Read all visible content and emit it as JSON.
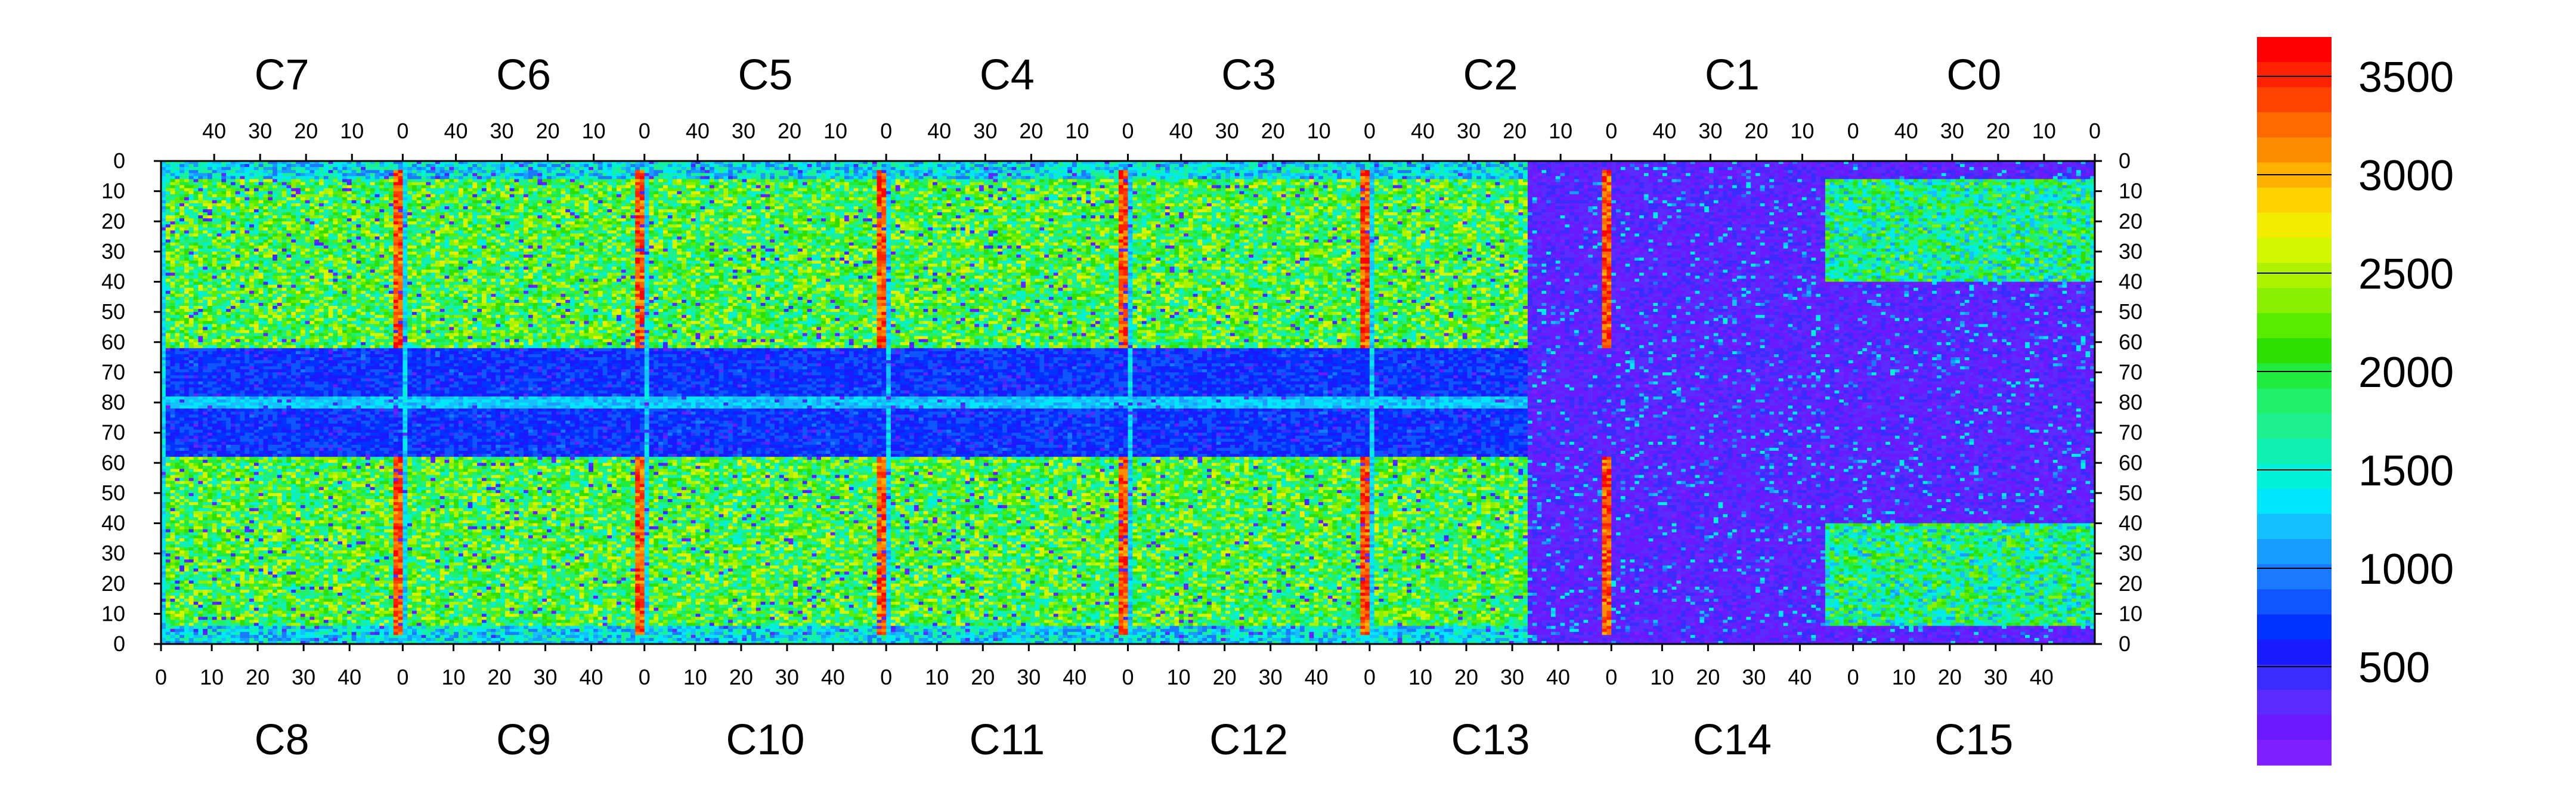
{
  "chart_data": {
    "type": "heatmap",
    "title": "",
    "xlabel": "",
    "ylabel": "",
    "z_range": [
      0,
      3700
    ],
    "top_chips": [
      "C7",
      "C6",
      "C5",
      "C4",
      "C3",
      "C2",
      "C1",
      "C0"
    ],
    "bottom_chips": [
      "C8",
      "C9",
      "C10",
      "C11",
      "C12",
      "C13",
      "C14",
      "C15"
    ],
    "top_axis_ticks": [
      "40",
      "30",
      "20",
      "10",
      "0"
    ],
    "bottom_axis_ticks": [
      "0",
      "10",
      "20",
      "30",
      "40"
    ],
    "y_ticks_top_half": [
      "0",
      "10",
      "20",
      "30",
      "40",
      "50",
      "60",
      "70",
      "80"
    ],
    "y_ticks_bottom_half": [
      "70",
      "60",
      "50",
      "40",
      "30",
      "20",
      "10",
      "0"
    ],
    "colorbar": {
      "ticks": [
        "500",
        "1000",
        "1500",
        "2000",
        "2500",
        "3000",
        "3500"
      ],
      "tick_values": [
        500,
        1000,
        1500,
        2000,
        2500,
        3000,
        3500
      ],
      "min": 0,
      "max": 3700,
      "colors": [
        "#7f1fff",
        "#6b1aff",
        "#5a2aff",
        "#3a2bff",
        "#1a1aff",
        "#0033ff",
        "#0f56ff",
        "#1a7aff",
        "#189cff",
        "#14c0ff",
        "#00e6ff",
        "#00f0d8",
        "#10f0b0",
        "#1ef090",
        "#20f06a",
        "#20ec40",
        "#2ee000",
        "#58ec00",
        "#88f000",
        "#aef200",
        "#d2f600",
        "#f4ec00",
        "#ffd200",
        "#ffb000",
        "#ff8c00",
        "#ff6a00",
        "#ff4400",
        "#ff2200",
        "#ff0000"
      ]
    },
    "rows": 160,
    "cols_per_chip": 52,
    "num_chips_per_row": 8
  }
}
